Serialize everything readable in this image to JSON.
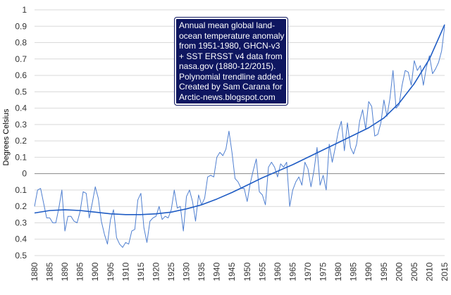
{
  "chart_data": {
    "type": "line",
    "title": "",
    "xlabel": "",
    "ylabel": "Degrees Celsius",
    "xlim": [
      1880,
      2015
    ],
    "ylim": [
      -0.5,
      1.0
    ],
    "x_ticks": [
      1880,
      1885,
      1890,
      1895,
      1900,
      1905,
      1910,
      1915,
      1920,
      1925,
      1930,
      1935,
      1940,
      1945,
      1950,
      1955,
      1960,
      1965,
      1970,
      1975,
      1980,
      1985,
      1990,
      1995,
      2000,
      2005,
      2010,
      2015
    ],
    "y_ticks": [
      {
        "value": 1.0,
        "label": "1"
      },
      {
        "value": 0.9,
        "label": "0.9"
      },
      {
        "value": 0.8,
        "label": "0.8"
      },
      {
        "value": 0.7,
        "label": "0.7"
      },
      {
        "value": 0.6,
        "label": "0.6"
      },
      {
        "value": 0.5,
        "label": "0.5"
      },
      {
        "value": 0.4,
        "label": "0.4"
      },
      {
        "value": 0.3,
        "label": "0.3"
      },
      {
        "value": 0.2,
        "label": "0.2"
      },
      {
        "value": 0.1,
        "label": "0.1"
      },
      {
        "value": 0.0,
        "label": "0"
      },
      {
        "value": -0.1,
        "label": "0.1"
      },
      {
        "value": -0.2,
        "label": "0.2"
      },
      {
        "value": -0.3,
        "label": "0.3"
      },
      {
        "value": -0.4,
        "label": "0.4"
      },
      {
        "value": -0.5,
        "label": "0.5"
      }
    ],
    "series": [
      {
        "name": "Annual mean anomaly",
        "color": "#4f7fd0",
        "x": [
          1880,
          1881,
          1882,
          1883,
          1884,
          1885,
          1886,
          1887,
          1888,
          1889,
          1890,
          1891,
          1892,
          1893,
          1894,
          1895,
          1896,
          1897,
          1898,
          1899,
          1900,
          1901,
          1902,
          1903,
          1904,
          1905,
          1906,
          1907,
          1908,
          1909,
          1910,
          1911,
          1912,
          1913,
          1914,
          1915,
          1916,
          1917,
          1918,
          1919,
          1920,
          1921,
          1922,
          1923,
          1924,
          1925,
          1926,
          1927,
          1928,
          1929,
          1930,
          1931,
          1932,
          1933,
          1934,
          1935,
          1936,
          1937,
          1938,
          1939,
          1940,
          1941,
          1942,
          1943,
          1944,
          1945,
          1946,
          1947,
          1948,
          1949,
          1950,
          1951,
          1952,
          1953,
          1954,
          1955,
          1956,
          1957,
          1958,
          1959,
          1960,
          1961,
          1962,
          1963,
          1964,
          1965,
          1966,
          1967,
          1968,
          1969,
          1970,
          1971,
          1972,
          1973,
          1974,
          1975,
          1976,
          1977,
          1978,
          1979,
          1980,
          1981,
          1982,
          1983,
          1984,
          1985,
          1986,
          1987,
          1988,
          1989,
          1990,
          1991,
          1992,
          1993,
          1994,
          1995,
          1996,
          1997,
          1998,
          1999,
          2000,
          2001,
          2002,
          2003,
          2004,
          2005,
          2006,
          2007,
          2008,
          2009,
          2010,
          2011,
          2012,
          2013,
          2014,
          2015
        ],
        "values": [
          -0.2,
          -0.1,
          -0.09,
          -0.18,
          -0.27,
          -0.27,
          -0.3,
          -0.3,
          -0.21,
          -0.1,
          -0.35,
          -0.26,
          -0.26,
          -0.29,
          -0.3,
          -0.23,
          -0.11,
          -0.12,
          -0.27,
          -0.18,
          -0.08,
          -0.15,
          -0.29,
          -0.37,
          -0.43,
          -0.28,
          -0.22,
          -0.39,
          -0.43,
          -0.45,
          -0.42,
          -0.43,
          -0.35,
          -0.34,
          -0.16,
          -0.12,
          -0.33,
          -0.42,
          -0.29,
          -0.27,
          -0.26,
          -0.2,
          -0.28,
          -0.26,
          -0.27,
          -0.22,
          -0.1,
          -0.21,
          -0.2,
          -0.35,
          -0.14,
          -0.1,
          -0.17,
          -0.29,
          -0.13,
          -0.19,
          -0.15,
          -0.02,
          -0.01,
          -0.02,
          0.1,
          0.13,
          0.11,
          0.15,
          0.26,
          0.13,
          -0.03,
          -0.05,
          -0.09,
          -0.09,
          -0.17,
          -0.06,
          0.02,
          0.09,
          -0.11,
          -0.13,
          -0.19,
          0.04,
          0.07,
          0.04,
          -0.02,
          0.06,
          0.04,
          0.07,
          -0.2,
          -0.1,
          -0.05,
          -0.02,
          -0.07,
          0.07,
          0.03,
          -0.08,
          0.02,
          0.16,
          -0.07,
          -0.01,
          -0.1,
          0.18,
          0.07,
          0.16,
          0.26,
          0.32,
          0.14,
          0.31,
          0.16,
          0.12,
          0.18,
          0.32,
          0.39,
          0.27,
          0.44,
          0.41,
          0.23,
          0.24,
          0.31,
          0.45,
          0.35,
          0.46,
          0.63,
          0.4,
          0.42,
          0.54,
          0.63,
          0.62,
          0.54,
          0.69,
          0.63,
          0.66,
          0.54,
          0.65,
          0.72,
          0.61,
          0.64,
          0.68,
          0.75,
          0.9
        ]
      },
      {
        "name": "Polynomial trendline",
        "color": "#1f5cc4",
        "x": [
          1880,
          1885,
          1890,
          1895,
          1900,
          1905,
          1910,
          1915,
          1920,
          1925,
          1930,
          1935,
          1940,
          1945,
          1950,
          1955,
          1960,
          1965,
          1970,
          1975,
          1980,
          1985,
          1990,
          1995,
          2000,
          2005,
          2010,
          2015
        ],
        "values": [
          -0.24,
          -0.225,
          -0.22,
          -0.225,
          -0.235,
          -0.245,
          -0.25,
          -0.25,
          -0.245,
          -0.235,
          -0.215,
          -0.19,
          -0.155,
          -0.115,
          -0.07,
          -0.025,
          0.015,
          0.055,
          0.1,
          0.145,
          0.19,
          0.235,
          0.28,
          0.34,
          0.43,
          0.55,
          0.7,
          0.91
        ]
      }
    ],
    "annotation": [
      "Annual mean global land-",
      "ocean temperature anomaly",
      "from 1951-1980, GHCN-v3",
      "+ SST ERSST v4 data from",
      "nasa.gov (1880-12/2015).",
      "Polynomial trendline added.",
      "Created by Sam Carana for",
      "Arctic-news.blogspot.com"
    ],
    "legend": "none",
    "grid": true
  }
}
